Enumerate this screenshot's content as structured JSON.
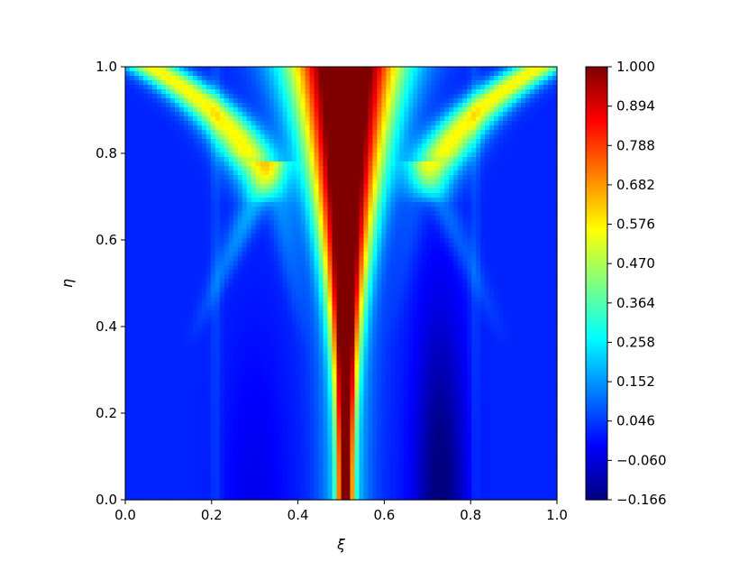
{
  "chart_data": {
    "type": "heatmap",
    "title": "",
    "xlabel": "ξ",
    "ylabel": "η",
    "xlim": [
      0.0,
      1.0
    ],
    "ylim": [
      0.0,
      1.0
    ],
    "x_ticks": [
      0.0,
      0.2,
      0.4,
      0.6,
      0.8,
      1.0
    ],
    "y_ticks": [
      0.0,
      0.2,
      0.4,
      0.6,
      0.8,
      1.0
    ],
    "x_tick_labels": [
      "0.0",
      "0.2",
      "0.4",
      "0.6",
      "0.8",
      "1.0"
    ],
    "y_tick_labels": [
      "0.0",
      "0.2",
      "0.4",
      "0.6",
      "0.8",
      "1.0"
    ],
    "colormap": "jet",
    "grid": false,
    "colorbar": {
      "min": -0.166,
      "max": 1.0,
      "ticks": [
        1.0,
        0.894,
        0.788,
        0.682,
        0.576,
        0.47,
        0.364,
        0.258,
        0.152,
        0.046,
        -0.06,
        -0.166
      ],
      "tick_labels": [
        "1.000",
        "0.894",
        "0.788",
        "0.682",
        "0.576",
        "0.470",
        "0.364",
        "0.258",
        "0.152",
        "0.046",
        "−0.060",
        "−0.166"
      ]
    }
  }
}
